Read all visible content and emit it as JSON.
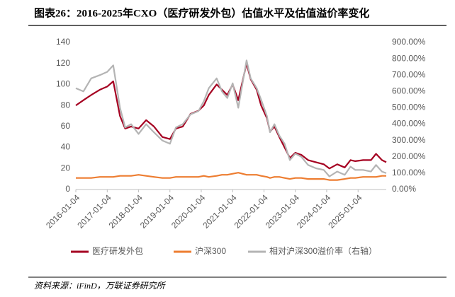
{
  "chart_data": {
    "type": "line",
    "title": "图表26：2016-2025年CXO（医疗研发外包）估值水平及估值溢价率变化",
    "source": "资料来源：iFinD，万联证券研究所",
    "x": [
      "2016-01-04",
      "2016-04-01",
      "2016-07-01",
      "2016-10-10",
      "2017-01-04",
      "2017-03-15",
      "2017-06-01",
      "2017-08-01",
      "2017-10-09",
      "2018-01-04",
      "2018-04-02",
      "2018-07-02",
      "2018-10-08",
      "2019-01-04",
      "2019-03-15",
      "2019-06-03",
      "2019-09-02",
      "2019-12-02",
      "2020-02-03",
      "2020-04-01",
      "2020-07-01",
      "2020-09-01",
      "2020-11-02",
      "2021-01-04",
      "2021-03-10",
      "2021-06-15",
      "2021-08-02",
      "2021-10-11",
      "2021-12-01",
      "2022-02-07",
      "2022-03-15",
      "2022-05-05",
      "2022-07-01",
      "2022-09-01",
      "2022-11-01",
      "2023-01-04",
      "2023-03-15",
      "2023-06-01",
      "2023-09-01",
      "2023-12-01",
      "2024-02-05",
      "2024-05-06",
      "2024-08-01",
      "2024-10-08",
      "2024-12-02",
      "2025-03-03",
      "2025-06-03",
      "2025-08-01",
      "2025-10-09",
      "2025-11-28"
    ],
    "xlim": [
      "2016-01-04",
      "2025-11-28"
    ],
    "xticks": [
      "2016-01-04",
      "2017-01-04",
      "2018-01-04",
      "2019-01-04",
      "2020-01-04",
      "2021-01-04",
      "2022-01-04",
      "2023-01-04",
      "2024-01-04",
      "2025-01-04"
    ],
    "ylim": [
      0,
      140
    ],
    "yticks": [
      0,
      20,
      40,
      60,
      80,
      100,
      120,
      140
    ],
    "y2lim": [
      0,
      900
    ],
    "y2ticks": [
      {
        "value": 0,
        "label": "0.00%"
      },
      {
        "value": 100,
        "label": "100.00%"
      },
      {
        "value": 200,
        "label": "200.00%"
      },
      {
        "value": 300,
        "label": "300.00%"
      },
      {
        "value": 400,
        "label": "400.00%"
      },
      {
        "value": 500,
        "label": "500.00%"
      },
      {
        "value": 600,
        "label": "600.00%"
      },
      {
        "value": 700,
        "label": "700.00%"
      },
      {
        "value": 800,
        "label": "800.00%"
      },
      {
        "value": 900,
        "label": "900.00%"
      }
    ],
    "legend": "bottom",
    "series": [
      {
        "name": "医疗研发外包",
        "color": "#a50021",
        "values": [
          80,
          85,
          90,
          95,
          98,
          103,
          70,
          58,
          60,
          58,
          66,
          60,
          50,
          48,
          58,
          60,
          72,
          75,
          80,
          90,
          100,
          95,
          90,
          100,
          85,
          120,
          105,
          95,
          80,
          68,
          55,
          60,
          50,
          40,
          30,
          35,
          33,
          28,
          26,
          24,
          20,
          24,
          21,
          28,
          27,
          28,
          28,
          34,
          28,
          26
        ]
      },
      {
        "name": "沪深300",
        "color": "#ed7d31",
        "values": [
          11,
          11,
          11,
          12,
          12,
          12,
          13,
          13,
          13,
          14,
          13,
          12,
          11,
          11,
          12,
          12,
          12,
          12,
          13,
          12,
          13,
          14,
          14,
          15,
          16,
          14,
          14,
          14,
          13,
          12,
          11,
          12,
          12,
          11,
          10,
          11,
          11,
          10,
          10,
          10,
          9,
          9,
          10,
          11,
          11,
          12,
          12,
          12,
          13,
          13
        ]
      },
      {
        "name": "相对沪深300溢价率（右轴）",
        "color": "#b4b4b4",
        "axis": "y2",
        "values": [
          620,
          600,
          680,
          700,
          720,
          760,
          500,
          380,
          400,
          340,
          400,
          350,
          300,
          280,
          380,
          400,
          460,
          480,
          540,
          620,
          680,
          600,
          560,
          650,
          500,
          790,
          680,
          620,
          550,
          450,
          350,
          400,
          330,
          280,
          180,
          220,
          200,
          150,
          130,
          120,
          80,
          110,
          90,
          140,
          120,
          120,
          110,
          150,
          110,
          100
        ]
      }
    ]
  }
}
